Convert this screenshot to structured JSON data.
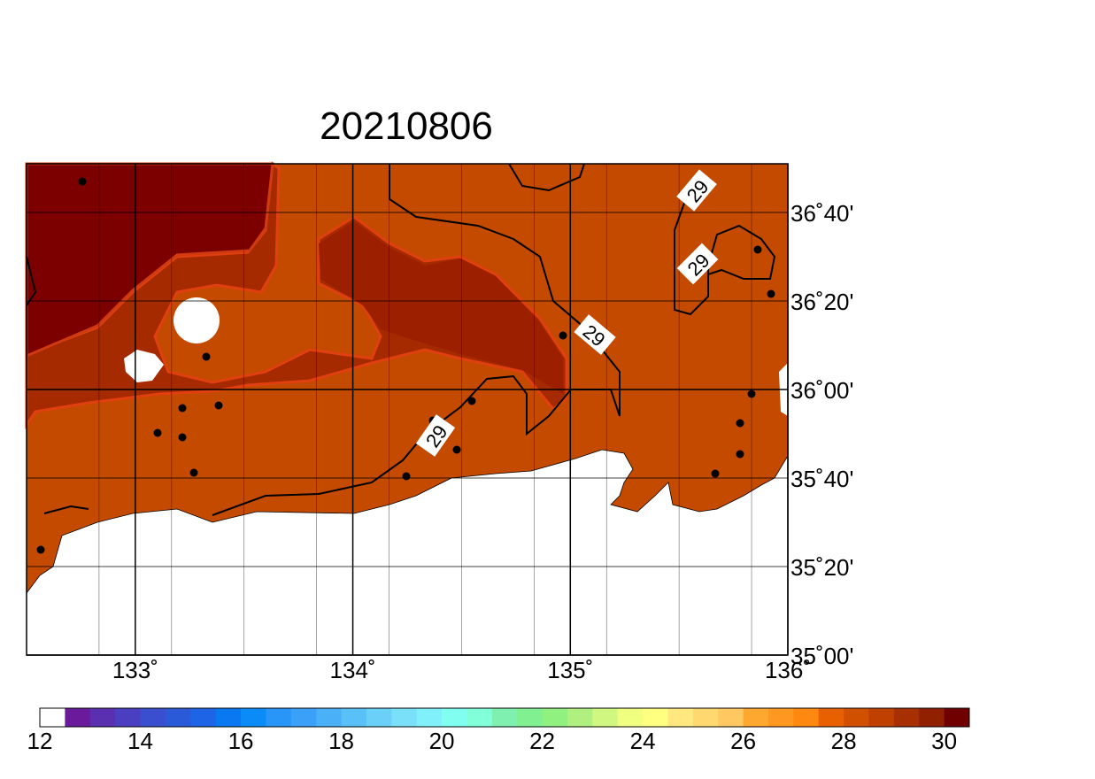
{
  "title": "20210806",
  "map": {
    "xlim": [
      132.5,
      136
    ],
    "ylim": [
      35,
      36.85
    ],
    "xticks": [
      {
        "value": 133,
        "label": "133˚"
      },
      {
        "value": 134,
        "label": "134˚"
      },
      {
        "value": 135,
        "label": "135˚"
      },
      {
        "value": 136,
        "label": "136˚"
      }
    ],
    "yticks": [
      {
        "value": 35,
        "label": "35˚00'"
      },
      {
        "value": 35.3333,
        "label": "35˚20'"
      },
      {
        "value": 35.6667,
        "label": "35˚40'"
      },
      {
        "value": 36,
        "label": "36˚00'"
      },
      {
        "value": 36.3333,
        "label": "36˚20'"
      },
      {
        "value": 36.6667,
        "label": "36˚40'"
      }
    ],
    "contour_labels": [
      29,
      29,
      29,
      29
    ]
  },
  "colorbar": {
    "range": [
      12,
      30.5
    ],
    "ticks": [
      12,
      14,
      16,
      18,
      20,
      22,
      24,
      26,
      28,
      30
    ],
    "colors": [
      "#ffffff",
      "#6a1a9a",
      "#5a2fb0",
      "#4a3fc0",
      "#3a4fd0",
      "#2a5ad8",
      "#1e64e6",
      "#0a78f0",
      "#0a8cf8",
      "#2896f8",
      "#3aa0f8",
      "#4ab0f8",
      "#5ac0f8",
      "#6ad0f8",
      "#7ae0fa",
      "#80f0fa",
      "#80fff0",
      "#80ffd8",
      "#80f0b0",
      "#80f090",
      "#90f080",
      "#b0f080",
      "#d0f880",
      "#f0ff80",
      "#ffff80",
      "#ffe880",
      "#ffd870",
      "#ffc860",
      "#ffa830",
      "#ff9820",
      "#ff8810",
      "#e86000",
      "#d05000",
      "#c04000",
      "#a83000",
      "#902000",
      "#700000"
    ]
  }
}
